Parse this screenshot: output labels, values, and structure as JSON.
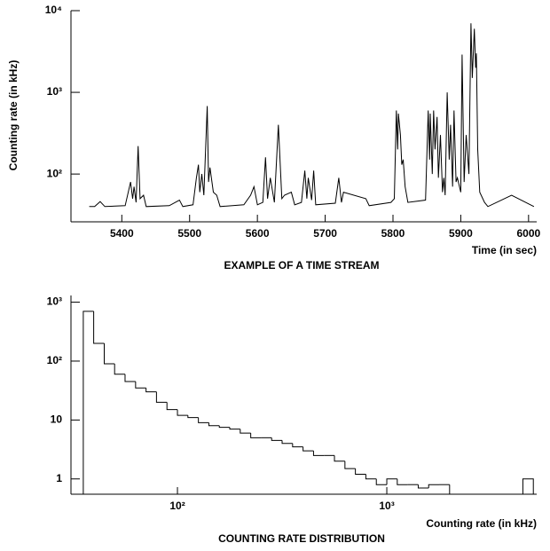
{
  "chart_data": [
    {
      "type": "line",
      "ylabel": "Counting rate (in kHz)",
      "xlabel": "Time (in sec)",
      "caption": "EXAMPLE OF A TIME STREAM",
      "color": "#000000",
      "log_y": true,
      "log_x": false,
      "xlim": [
        5325,
        6012
      ],
      "ylim": [
        26,
        10000
      ],
      "xticks": [
        5400,
        5500,
        5600,
        5700,
        5800,
        5900,
        6000
      ],
      "yticks": [
        {
          "value": 100,
          "label": "10²"
        },
        {
          "value": 1000,
          "label": "10³"
        },
        {
          "value": 10000,
          "label": "10⁴"
        }
      ],
      "x": [
        5352,
        5360,
        5368,
        5375,
        5405,
        5413,
        5416,
        5418,
        5421,
        5424,
        5427,
        5432,
        5436,
        5470,
        5485,
        5490,
        5505,
        5510,
        5513,
        5515,
        5518,
        5521,
        5526,
        5528,
        5530,
        5535,
        5540,
        5545,
        5580,
        5590,
        5595,
        5600,
        5608,
        5612,
        5615,
        5619,
        5625,
        5631,
        5636,
        5640,
        5650,
        5655,
        5665,
        5670,
        5673,
        5675,
        5680,
        5683,
        5686,
        5715,
        5720,
        5724,
        5727,
        5760,
        5765,
        5797,
        5802,
        5805,
        5807,
        5808,
        5811,
        5813,
        5815,
        5818,
        5822,
        5848,
        5852,
        5854,
        5855,
        5858,
        5860,
        5862,
        5865,
        5867,
        5870,
        5873,
        5875,
        5877,
        5880,
        5883,
        5885,
        5888,
        5890,
        5893,
        5895,
        5900,
        5902,
        5905,
        5908,
        5912,
        5915,
        5917,
        5920,
        5922,
        5923,
        5925,
        5928,
        5935,
        5940,
        5975,
        6008
      ],
      "values": [
        40,
        40,
        46,
        40,
        41,
        80,
        50,
        70,
        45,
        220,
        50,
        55,
        40,
        41,
        48,
        40,
        42,
        90,
        130,
        60,
        100,
        55,
        680,
        80,
        120,
        60,
        55,
        40,
        42,
        55,
        70,
        42,
        45,
        160,
        50,
        90,
        45,
        400,
        50,
        55,
        60,
        42,
        45,
        110,
        50,
        90,
        48,
        110,
        42,
        44,
        90,
        45,
        60,
        50,
        41,
        45,
        50,
        600,
        200,
        550,
        300,
        130,
        150,
        70,
        45,
        48,
        600,
        150,
        550,
        100,
        600,
        200,
        500,
        90,
        300,
        60,
        90,
        55,
        1000,
        150,
        400,
        70,
        600,
        80,
        90,
        60,
        2900,
        80,
        300,
        100,
        7000,
        1500,
        6000,
        2000,
        3000,
        200,
        60,
        45,
        40,
        55,
        40
      ]
    },
    {
      "type": "histogram",
      "xlabel": "Counting rate (in kHz)",
      "caption": "COUNTING RATE DISTRIBUTION",
      "color": "#000000",
      "log_y": true,
      "log_x": true,
      "xlim": [
        31,
        5200
      ],
      "ylim": [
        0.55,
        1300
      ],
      "xticks": [
        {
          "value": 100,
          "label": "10²"
        },
        {
          "value": 1000,
          "label": "10³"
        }
      ],
      "yticks": [
        1,
        10,
        {
          "value": 100,
          "label": "10²"
        },
        {
          "value": 1000,
          "label": "10³"
        }
      ],
      "bins": [
        35.5,
        39.8,
        44.7,
        50.1,
        56.2,
        63.1,
        70.8,
        79.4,
        89.1,
        100,
        112.2,
        125.9,
        141.3,
        158.5,
        177.8,
        199.5,
        223.9,
        251.2,
        281.8,
        316.2,
        354.8,
        398.1,
        446.7,
        501.2,
        562.3,
        631,
        707.9,
        794.3,
        891.3,
        1000,
        1122,
        1259,
        1413,
        1585,
        1778,
        1995,
        2239,
        2512,
        2818,
        3162,
        3548,
        3981,
        4467,
        5012
      ],
      "values": [
        700,
        200,
        90,
        60,
        45,
        35,
        30,
        20,
        15,
        12,
        11,
        9,
        8,
        7.5,
        7,
        6,
        5,
        5,
        4.5,
        4,
        3.5,
        3,
        2.5,
        2.5,
        2,
        1.5,
        1.2,
        1,
        0.8,
        1,
        0.8,
        0.8,
        0.7,
        0.8,
        0.8,
        0,
        0,
        0,
        0,
        0,
        0,
        0,
        1
      ]
    }
  ]
}
